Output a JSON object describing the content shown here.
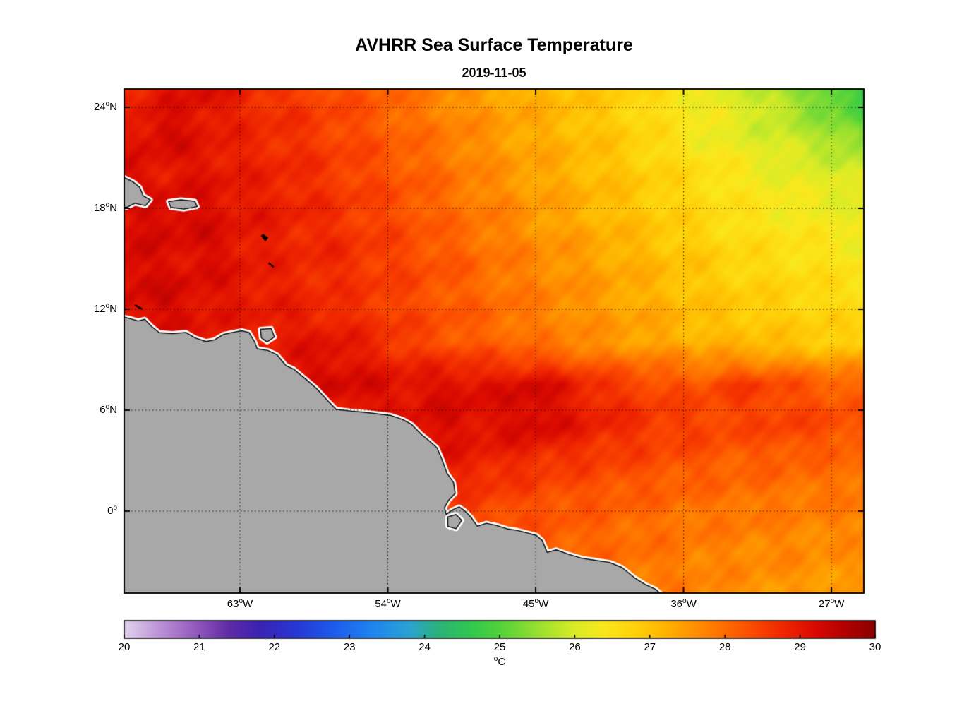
{
  "chart": {
    "title": "AVHRR Sea Surface Temperature",
    "subtitle": "2019-11-05"
  },
  "axes": {
    "y_ticks": [
      {
        "value": "24",
        "hem": "N",
        "lat": 24
      },
      {
        "value": "18",
        "hem": "N",
        "lat": 18
      },
      {
        "value": "12",
        "hem": "N",
        "lat": 12
      },
      {
        "value": "6",
        "hem": "N",
        "lat": 6
      },
      {
        "value": "0",
        "hem": "",
        "lat": 0
      }
    ],
    "x_ticks": [
      {
        "value": "63",
        "hem": "W",
        "lon": 63
      },
      {
        "value": "54",
        "hem": "W",
        "lon": 54
      },
      {
        "value": "45",
        "hem": "W",
        "lon": 45
      },
      {
        "value": "36",
        "hem": "W",
        "lon": 36
      },
      {
        "value": "27",
        "hem": "W",
        "lon": 27
      }
    ]
  },
  "colorbar": {
    "min": 20,
    "max": 30,
    "ticks": [
      "20",
      "21",
      "22",
      "23",
      "24",
      "25",
      "26",
      "27",
      "28",
      "29",
      "30"
    ],
    "unit_sup": "o",
    "unit_text": "C"
  },
  "chart_data": {
    "type": "heatmap",
    "title": "AVHRR Sea Surface Temperature",
    "subtitle": "2019-11-05",
    "value_units": "°C",
    "colorbar_range": [
      20,
      30
    ],
    "lon_range_deg_w": [
      70.0,
      25.0
    ],
    "lat_range_deg_n": [
      -4.9,
      25.1
    ],
    "x_tick_labels": [
      "63°W",
      "54°W",
      "45°W",
      "36°W",
      "27°W"
    ],
    "y_tick_labels": [
      "24°N",
      "18°N",
      "12°N",
      "6°N",
      "0°"
    ],
    "grid_style": "dotted",
    "lon_w": [
      70,
      67.5,
      65,
      62.5,
      60,
      57.5,
      55,
      52.5,
      50,
      47.5,
      45,
      42.5,
      40,
      37.5,
      35,
      32.5,
      30,
      27.5,
      25
    ],
    "lat_n": [
      25,
      22.5,
      20,
      17.5,
      15,
      12.5,
      10,
      7.5,
      5,
      2.5,
      0,
      -2.5,
      -5
    ],
    "sst_c": [
      [
        28.8,
        29.0,
        29.2,
        28.8,
        28.6,
        28.4,
        28.2,
        27.9,
        27.6,
        27.4,
        27.2,
        27.0,
        26.8,
        26.6,
        26.3,
        26.0,
        25.6,
        25.1,
        24.7
      ],
      [
        29.0,
        29.3,
        29.0,
        28.8,
        28.7,
        28.5,
        28.3,
        28.0,
        27.8,
        27.5,
        27.3,
        27.1,
        26.9,
        26.6,
        26.3,
        26.1,
        25.9,
        25.6,
        25.2
      ],
      [
        29.2,
        29.0,
        29.1,
        28.9,
        28.8,
        28.6,
        28.4,
        28.2,
        27.9,
        27.6,
        27.4,
        27.2,
        27.0,
        26.8,
        26.6,
        26.4,
        26.2,
        26.1,
        26.0
      ],
      [
        29.1,
        29.3,
        29.2,
        29.0,
        28.9,
        28.7,
        28.5,
        28.3,
        28.0,
        27.8,
        27.5,
        27.3,
        27.1,
        26.9,
        26.7,
        26.5,
        26.4,
        26.3,
        26.2
      ],
      [
        29.3,
        29.1,
        29.2,
        29.0,
        28.8,
        28.8,
        28.6,
        28.4,
        28.2,
        27.9,
        27.7,
        27.5,
        27.3,
        27.1,
        26.9,
        26.7,
        26.6,
        26.5,
        26.4
      ],
      [
        29.2,
        29.3,
        29.1,
        29.0,
        28.9,
        28.7,
        28.6,
        28.4,
        28.2,
        28.0,
        27.8,
        27.6,
        27.4,
        27.2,
        27.0,
        26.9,
        26.8,
        26.7,
        26.6
      ],
      [
        29.0,
        29.1,
        29.0,
        28.9,
        29.0,
        29.1,
        28.8,
        28.5,
        28.3,
        28.1,
        27.9,
        27.7,
        27.5,
        27.4,
        27.2,
        27.1,
        27.0,
        26.9,
        26.8
      ],
      [
        29.0,
        29.0,
        29.0,
        29.0,
        29.1,
        29.3,
        29.2,
        29.1,
        29.2,
        29.1,
        29.3,
        28.9,
        28.6,
        28.4,
        28.3,
        28.6,
        28.4,
        28.2,
        28.1
      ],
      [
        28.9,
        28.9,
        28.9,
        28.9,
        28.9,
        28.9,
        29.0,
        29.1,
        29.2,
        29.1,
        29.3,
        29.0,
        28.8,
        28.6,
        28.5,
        28.4,
        28.5,
        28.4,
        28.3
      ],
      [
        28.8,
        28.8,
        28.8,
        28.8,
        28.8,
        28.8,
        28.8,
        28.9,
        28.9,
        28.8,
        28.6,
        28.5,
        28.4,
        28.3,
        28.2,
        28.1,
        28.1,
        28.0,
        28.0
      ],
      [
        28.6,
        28.6,
        28.6,
        28.6,
        28.6,
        28.6,
        28.6,
        28.6,
        28.5,
        28.4,
        28.3,
        28.2,
        28.1,
        28.0,
        27.9,
        27.9,
        27.8,
        27.8,
        27.8
      ],
      [
        28.4,
        28.4,
        28.4,
        28.4,
        28.4,
        28.4,
        28.4,
        28.4,
        28.4,
        28.3,
        28.2,
        28.1,
        28.0,
        27.9,
        27.8,
        27.7,
        27.7,
        27.6,
        27.6
      ],
      [
        28.2,
        28.2,
        28.2,
        28.2,
        28.2,
        28.2,
        28.2,
        28.2,
        28.2,
        28.2,
        28.1,
        28.0,
        27.9,
        27.8,
        27.7,
        27.6,
        27.5,
        27.5,
        27.4
      ]
    ],
    "colormap_stops": [
      [
        20.0,
        "#e2d3ee"
      ],
      [
        20.5,
        "#bb8fd6"
      ],
      [
        21.0,
        "#8f54bc"
      ],
      [
        21.4,
        "#5f2ba6"
      ],
      [
        21.8,
        "#3c22b4"
      ],
      [
        22.3,
        "#2738d6"
      ],
      [
        22.8,
        "#1e5cee"
      ],
      [
        23.3,
        "#1f85f0"
      ],
      [
        23.8,
        "#2aa3d2"
      ],
      [
        24.2,
        "#2ab478"
      ],
      [
        24.6,
        "#30c850"
      ],
      [
        25.0,
        "#52d23a"
      ],
      [
        25.5,
        "#98e030"
      ],
      [
        26.0,
        "#d9ec26"
      ],
      [
        26.4,
        "#fbe71c"
      ],
      [
        26.8,
        "#ffd20a"
      ],
      [
        27.2,
        "#ffb400"
      ],
      [
        27.6,
        "#ff9000"
      ],
      [
        28.0,
        "#ff6c00"
      ],
      [
        28.4,
        "#fb4800"
      ],
      [
        28.8,
        "#ef2600"
      ],
      [
        29.2,
        "#da0a00"
      ],
      [
        29.6,
        "#b30000"
      ],
      [
        30.0,
        "#8b0000"
      ]
    ],
    "land_color": "#a8a8a8",
    "coast_halo_color": "#ffffff",
    "coast_line_color": "#000000",
    "land_polygons": {
      "mainland": [
        [
          70.15,
          11.55
        ],
        [
          69.7,
          11.45
        ],
        [
          69.2,
          11.3
        ],
        [
          68.8,
          11.4
        ],
        [
          68.35,
          10.95
        ],
        [
          67.9,
          10.6
        ],
        [
          67.1,
          10.55
        ],
        [
          66.3,
          10.62
        ],
        [
          65.7,
          10.28
        ],
        [
          65.05,
          10.08
        ],
        [
          64.55,
          10.18
        ],
        [
          64.0,
          10.5
        ],
        [
          63.45,
          10.62
        ],
        [
          62.9,
          10.72
        ],
        [
          62.45,
          10.62
        ],
        [
          62.1,
          10.05
        ],
        [
          61.95,
          9.65
        ],
        [
          61.3,
          9.55
        ],
        [
          60.75,
          9.3
        ],
        [
          60.2,
          8.65
        ],
        [
          59.75,
          8.45
        ],
        [
          59.0,
          7.85
        ],
        [
          58.35,
          7.3
        ],
        [
          57.6,
          6.5
        ],
        [
          57.15,
          6.05
        ],
        [
          56.3,
          5.95
        ],
        [
          55.5,
          5.88
        ],
        [
          54.6,
          5.78
        ],
        [
          53.8,
          5.68
        ],
        [
          53.1,
          5.45
        ],
        [
          52.55,
          5.15
        ],
        [
          51.95,
          4.55
        ],
        [
          51.45,
          4.15
        ],
        [
          51.0,
          3.75
        ],
        [
          50.7,
          3.05
        ],
        [
          50.4,
          2.25
        ],
        [
          50.0,
          1.7
        ],
        [
          49.9,
          1.05
        ],
        [
          50.3,
          0.65
        ],
        [
          50.55,
          0.2
        ],
        [
          50.45,
          -0.2
        ],
        [
          50.1,
          0.05
        ],
        [
          49.65,
          0.25
        ],
        [
          49.3,
          0.0
        ],
        [
          48.95,
          -0.35
        ],
        [
          48.55,
          -0.9
        ],
        [
          48.0,
          -0.72
        ],
        [
          47.4,
          -0.85
        ],
        [
          46.75,
          -1.05
        ],
        [
          46.1,
          -1.15
        ],
        [
          45.5,
          -1.3
        ],
        [
          44.95,
          -1.45
        ],
        [
          44.6,
          -1.75
        ],
        [
          44.3,
          -2.45
        ],
        [
          43.75,
          -2.3
        ],
        [
          43.05,
          -2.55
        ],
        [
          42.2,
          -2.8
        ],
        [
          41.4,
          -2.92
        ],
        [
          40.5,
          -3.05
        ],
        [
          39.75,
          -3.35
        ],
        [
          39.0,
          -3.95
        ],
        [
          38.35,
          -4.35
        ],
        [
          37.7,
          -4.65
        ],
        [
          37.15,
          -5.1
        ],
        [
          70.3,
          -5.1
        ]
      ],
      "trinidad": [
        [
          61.75,
          10.8
        ],
        [
          61.1,
          10.85
        ],
        [
          60.9,
          10.35
        ],
        [
          61.35,
          10.05
        ],
        [
          61.7,
          10.3
        ]
      ],
      "marajo": [
        [
          50.35,
          -0.35
        ],
        [
          49.85,
          -0.2
        ],
        [
          49.5,
          -0.55
        ],
        [
          49.85,
          -1.05
        ],
        [
          50.35,
          -0.9
        ]
      ],
      "hispaniola": [
        [
          70.3,
          19.95
        ],
        [
          69.55,
          19.6
        ],
        [
          69.1,
          19.25
        ],
        [
          68.9,
          18.75
        ],
        [
          68.45,
          18.5
        ],
        [
          68.75,
          18.15
        ],
        [
          69.4,
          18.3
        ],
        [
          69.9,
          18.05
        ],
        [
          70.3,
          18.1
        ]
      ],
      "puerto_rico": [
        [
          67.35,
          18.4
        ],
        [
          66.6,
          18.5
        ],
        [
          65.75,
          18.42
        ],
        [
          65.6,
          18.1
        ],
        [
          66.4,
          17.95
        ],
        [
          67.2,
          18.05
        ]
      ]
    },
    "small_islands": {
      "guadeloupe_poly": [
        [
          61.7,
          16.35
        ],
        [
          61.45,
          16.05
        ],
        [
          61.3,
          16.25
        ],
        [
          61.6,
          16.45
        ]
      ],
      "martinique_dash": [
        [
          61.25,
          14.75
        ],
        [
          60.95,
          14.5
        ]
      ],
      "abc_dash": [
        [
          69.4,
          12.25
        ],
        [
          68.95,
          12.0
        ]
      ]
    }
  }
}
